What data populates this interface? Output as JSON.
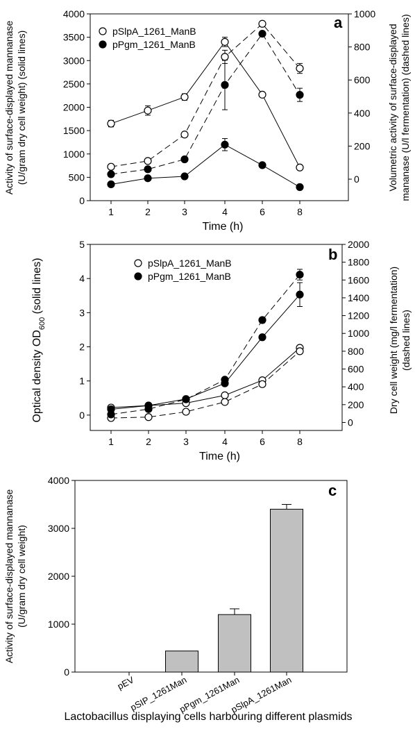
{
  "chart_data": [
    {
      "panel": "a",
      "type": "line",
      "x_categories": [
        "1",
        "2",
        "3",
        "4",
        "6",
        "8"
      ],
      "xlabel": "Time (h)",
      "ylabel_left": [
        "Activity of surface-displayed mannanase",
        "(U/gram dry cell weight) (solid lines)"
      ],
      "ylabel_right": [
        "Volumetric activity of surface-displayed",
        "mananase (U/l fermentation) (dashed lines)"
      ],
      "ylim_left": [
        0,
        4000
      ],
      "yticks_left": [
        0,
        500,
        1000,
        1500,
        2000,
        2500,
        3000,
        3500,
        4000
      ],
      "ylim_right": [
        -130,
        1000
      ],
      "yticks_right": [
        0,
        200,
        400,
        600,
        800,
        1000
      ],
      "legend_position": "top-left",
      "series": [
        {
          "name": "pSlpA_1261_ManB",
          "marker": "open",
          "axis": "left",
          "style": "solid",
          "values": [
            1650,
            1930,
            2220,
            3400,
            2270,
            710
          ],
          "errors": [
            70,
            100,
            70,
            100,
            40,
            30
          ]
        },
        {
          "name": "pPgm_1261_ManB",
          "marker": "filled",
          "axis": "left",
          "style": "solid",
          "values": [
            350,
            480,
            520,
            1200,
            760,
            290
          ],
          "errors": [
            0,
            0,
            0,
            130,
            0,
            0
          ]
        },
        {
          "name": "pSlpA_1261_ManB",
          "marker": "open",
          "axis": "right",
          "style": "dashed",
          "values": [
            75,
            110,
            270,
            740,
            940,
            670
          ],
          "errors": [
            0,
            0,
            0,
            40,
            0,
            30
          ]
        },
        {
          "name": "pPgm_1261_ManB",
          "marker": "filled",
          "axis": "right",
          "style": "dashed",
          "values": [
            30,
            60,
            120,
            570,
            880,
            510
          ],
          "errors": [
            0,
            0,
            0,
            150,
            15,
            40
          ]
        }
      ]
    },
    {
      "panel": "b",
      "type": "line",
      "x_categories": [
        "1",
        "2",
        "3",
        "4",
        "6",
        "8"
      ],
      "xlabel": "Time (h)",
      "ylabel_left": [
        "Optical density OD",
        "600",
        " (solid lines)"
      ],
      "ylabel_right": [
        "Dry cell weight (mg/l fermentation)",
        "(dashed lines)"
      ],
      "ylim_left": [
        -0.45,
        5
      ],
      "yticks_left": [
        0,
        1,
        2,
        3,
        4,
        5
      ],
      "ylim_right": [
        -90,
        2000
      ],
      "yticks_right": [
        0,
        200,
        400,
        600,
        800,
        1000,
        1200,
        1400,
        1600,
        1800,
        2000
      ],
      "legend_position": "top-left",
      "series": [
        {
          "name": "pSlpA_1261_ManB",
          "marker": "open",
          "axis": "left",
          "style": "solid",
          "values": [
            0.22,
            0.28,
            0.35,
            0.58,
            1.02,
            1.97
          ],
          "errors": [
            0,
            0,
            0,
            0,
            0,
            0
          ]
        },
        {
          "name": "pPgm_1261_ManB",
          "marker": "filled",
          "axis": "left",
          "style": "solid",
          "values": [
            0.17,
            0.28,
            0.47,
            0.93,
            2.28,
            3.53
          ],
          "errors": [
            0,
            0,
            0,
            0,
            0,
            0.35
          ]
        },
        {
          "name": "pSlpA_1261_ManB",
          "marker": "open",
          "axis": "right",
          "style": "dashed",
          "values": [
            50,
            60,
            120,
            230,
            430,
            800
          ],
          "errors": [
            0,
            0,
            0,
            0,
            0,
            0
          ]
        },
        {
          "name": "pPgm_1261_ManB",
          "marker": "filled",
          "axis": "right",
          "style": "dashed",
          "values": [
            90,
            150,
            260,
            480,
            1150,
            1660
          ],
          "errors": [
            0,
            0,
            0,
            0,
            30,
            60
          ]
        }
      ]
    },
    {
      "panel": "c",
      "type": "bar",
      "categories": [
        "pEV",
        "pSIP_1261Man",
        "pPgm_1261Man",
        "pSlpA_1261Man"
      ],
      "values": [
        0,
        440,
        1200,
        3400
      ],
      "errors": [
        0,
        0,
        120,
        100
      ],
      "xlabel": "Lactobacillus displaying cells harbouring different plasmids",
      "ylabel": [
        "Activity of surface-displayed mannanase",
        "(U/gram dry cell weight)"
      ],
      "ylim": [
        0,
        4000
      ],
      "yticks": [
        0,
        1000,
        2000,
        3000,
        4000
      ],
      "bar_color": "#c0c0c0"
    }
  ]
}
